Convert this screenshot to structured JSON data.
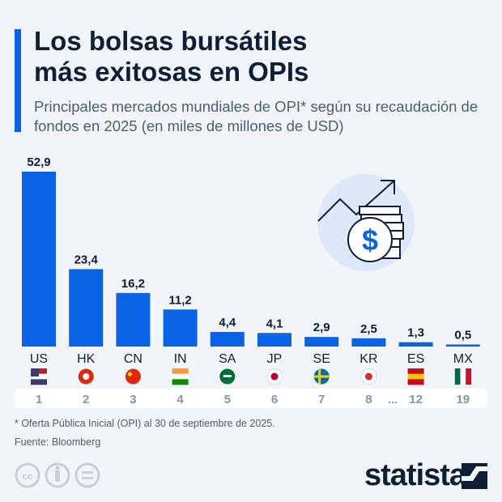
{
  "title_line1": "Los bolsas bursátiles",
  "title_line2": "más exitosas en OPIs",
  "subtitle": "Principales mercados mundiales de OPI* según su recaudación de fondos en 2025 (en miles de millones de USD)",
  "chart_data": {
    "type": "bar",
    "categories": [
      "US",
      "HK",
      "CN",
      "IN",
      "SA",
      "JP",
      "SE",
      "KR",
      "ES",
      "MX"
    ],
    "values": [
      52.9,
      23.4,
      16.2,
      11.2,
      4.4,
      4.1,
      2.9,
      2.5,
      1.3,
      0.5
    ],
    "value_labels": [
      "52,9",
      "23,4",
      "16,2",
      "11,2",
      "4,4",
      "4,1",
      "2,9",
      "2,5",
      "1,3",
      "0,5"
    ],
    "ranks": [
      "1",
      "2",
      "3",
      "4",
      "5",
      "6",
      "7",
      "8",
      "12",
      "19"
    ],
    "rank_gap_marker": "...",
    "flag_icons": [
      "flag-us-icon",
      "flag-hk-icon",
      "flag-cn-icon",
      "flag-in-icon",
      "flag-sa-icon",
      "flag-jp-icon",
      "flag-se-icon",
      "flag-kr-icon",
      "flag-es-icon",
      "flag-mx-icon"
    ],
    "bar_color": "#0a63e5",
    "ylim": [
      0,
      55
    ],
    "grid": false
  },
  "footnote": "* Oferta Pública Inicial (OPI) al 30 de septiembre de 2025.",
  "source": "Fuente: Bloomberg",
  "brand": "statista"
}
